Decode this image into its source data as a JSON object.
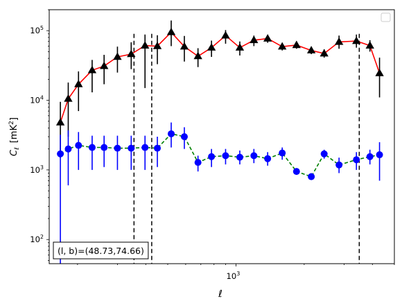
{
  "chart_data": {
    "type": "scatter",
    "xlabel": "ℓ",
    "ylabel_main": "C",
    "ylabel_sub": "ℓ",
    "ylabel_unit": "[mK",
    "ylabel_unit_sup": "2",
    "ylabel_unit_close": "]",
    "xscale": "log",
    "yscale": "log",
    "xlim": [
      150,
      5000
    ],
    "ylim": [
      45,
      200000
    ],
    "x_major_tick": {
      "value": 1000,
      "base": "10",
      "exp": "3"
    },
    "y_major_ticks": [
      {
        "value": 100,
        "base": "10",
        "exp": "2"
      },
      {
        "value": 1000,
        "base": "10",
        "exp": "3"
      },
      {
        "value": 10000,
        "base": "10",
        "exp": "4"
      },
      {
        "value": 100000,
        "base": "10",
        "exp": "5"
      }
    ],
    "vertical_dashed_lines": [
      355,
      425,
      3500
    ],
    "annotation": "(l, b)=(48.73,74.66)",
    "legend": {
      "placement": "top-right",
      "entries": []
    },
    "series": [
      {
        "style": "triangle-red-line",
        "line_color": "#ff0000",
        "marker_color": "#000000",
        "errorbar_color": "#000000",
        "points": [
          {
            "x": 168,
            "y": 4800,
            "lo": 1500,
            "hi": 9500
          },
          {
            "x": 182,
            "y": 10500,
            "lo": 3000,
            "hi": 18000
          },
          {
            "x": 202,
            "y": 17000,
            "lo": 7000,
            "hi": 26000
          },
          {
            "x": 232,
            "y": 27000,
            "lo": 13000,
            "hi": 38000
          },
          {
            "x": 262,
            "y": 31000,
            "lo": 17000,
            "hi": 45000
          },
          {
            "x": 300,
            "y": 42000,
            "lo": 25000,
            "hi": 59000
          },
          {
            "x": 345,
            "y": 46000,
            "lo": 28000,
            "hi": 68000
          },
          {
            "x": 397,
            "y": 61000,
            "lo": 15000,
            "hi": 88000
          },
          {
            "x": 450,
            "y": 60000,
            "lo": 33000,
            "hi": 86000
          },
          {
            "x": 518,
            "y": 95000,
            "lo": 60000,
            "hi": 140000
          },
          {
            "x": 592,
            "y": 59000,
            "lo": 36000,
            "hi": 84000
          },
          {
            "x": 680,
            "y": 43000,
            "lo": 30000,
            "hi": 56000
          },
          {
            "x": 780,
            "y": 57000,
            "lo": 42000,
            "hi": 72000
          },
          {
            "x": 900,
            "y": 85000,
            "lo": 65000,
            "hi": 102000
          },
          {
            "x": 1040,
            "y": 57000,
            "lo": 44000,
            "hi": 70000
          },
          {
            "x": 1200,
            "y": 73000,
            "lo": 60000,
            "hi": 85000
          },
          {
            "x": 1380,
            "y": 77000,
            "lo": 67000,
            "hi": 87000
          },
          {
            "x": 1600,
            "y": 59000,
            "lo": 52000,
            "hi": 67000
          },
          {
            "x": 1850,
            "y": 62000,
            "lo": 55000,
            "hi": 70000
          },
          {
            "x": 2150,
            "y": 52000,
            "lo": 46000,
            "hi": 59000
          },
          {
            "x": 2450,
            "y": 47000,
            "lo": 41000,
            "hi": 54000
          },
          {
            "x": 2850,
            "y": 69000,
            "lo": 55000,
            "hi": 85000
          },
          {
            "x": 3400,
            "y": 71000,
            "lo": 57000,
            "hi": 88000
          },
          {
            "x": 3900,
            "y": 61000,
            "lo": 50000,
            "hi": 73000
          },
          {
            "x": 4300,
            "y": 24500,
            "lo": 11000,
            "hi": 41000
          }
        ]
      },
      {
        "style": "circle-blue-dashed-green",
        "line_color": "#008000",
        "marker_color": "#0000ff",
        "errorbar_color": "#0000ff",
        "points": [
          {
            "x": 168,
            "y": 1700,
            "lo": 45,
            "hi": 3200
          },
          {
            "x": 182,
            "y": 2000,
            "lo": 600,
            "hi": 3700
          },
          {
            "x": 202,
            "y": 2250,
            "lo": 1000,
            "hi": 3500
          },
          {
            "x": 232,
            "y": 2100,
            "lo": 1000,
            "hi": 3100
          },
          {
            "x": 262,
            "y": 2100,
            "lo": 1100,
            "hi": 3100
          },
          {
            "x": 300,
            "y": 2050,
            "lo": 1000,
            "hi": 3100
          },
          {
            "x": 345,
            "y": 2050,
            "lo": 1000,
            "hi": 3100
          },
          {
            "x": 397,
            "y": 2100,
            "lo": 1000,
            "hi": 3100
          },
          {
            "x": 450,
            "y": 2050,
            "lo": 1100,
            "hi": 3000
          },
          {
            "x": 518,
            "y": 3300,
            "lo": 2100,
            "hi": 4800
          },
          {
            "x": 592,
            "y": 3000,
            "lo": 2000,
            "hi": 4100
          },
          {
            "x": 680,
            "y": 1280,
            "lo": 950,
            "hi": 1600
          },
          {
            "x": 780,
            "y": 1550,
            "lo": 1100,
            "hi": 2000
          },
          {
            "x": 900,
            "y": 1600,
            "lo": 1200,
            "hi": 2000
          },
          {
            "x": 1040,
            "y": 1520,
            "lo": 1200,
            "hi": 1900
          },
          {
            "x": 1200,
            "y": 1600,
            "lo": 1250,
            "hi": 2000
          },
          {
            "x": 1380,
            "y": 1450,
            "lo": 1150,
            "hi": 1800
          },
          {
            "x": 1600,
            "y": 1750,
            "lo": 1400,
            "hi": 2100
          },
          {
            "x": 1850,
            "y": 950,
            "lo": 850,
            "hi": 1050
          },
          {
            "x": 2150,
            "y": 800,
            "lo": 720,
            "hi": 900
          },
          {
            "x": 2450,
            "y": 1700,
            "lo": 1450,
            "hi": 1950
          },
          {
            "x": 2850,
            "y": 1180,
            "lo": 900,
            "hi": 1500
          },
          {
            "x": 3400,
            "y": 1400,
            "lo": 1000,
            "hi": 1800
          },
          {
            "x": 3900,
            "y": 1550,
            "lo": 1200,
            "hi": 1950
          },
          {
            "x": 4300,
            "y": 1650,
            "lo": 700,
            "hi": 2500
          }
        ]
      }
    ]
  }
}
